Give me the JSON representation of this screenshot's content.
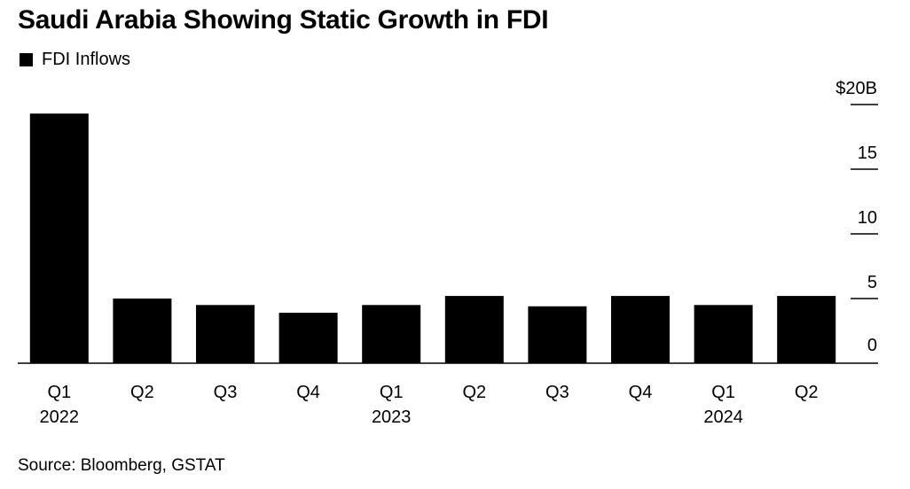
{
  "title": "Saudi Arabia Showing Static Growth in FDI",
  "source": "Source: Bloomberg, GSTAT",
  "colors": {
    "bar": "#000000",
    "axis": "#000000",
    "background": "#ffffff"
  },
  "chart_data": {
    "type": "bar",
    "categories": [
      "Q1",
      "Q2",
      "Q3",
      "Q4",
      "Q1",
      "Q2",
      "Q3",
      "Q4",
      "Q1",
      "Q2"
    ],
    "year_labels": [
      "2022",
      "",
      "",
      "",
      "2023",
      "",
      "",
      "",
      "2024",
      ""
    ],
    "series": [
      {
        "name": "FDI Inflows",
        "values": [
          19.3,
          5.0,
          4.5,
          3.9,
          4.5,
          5.2,
          4.4,
          5.2,
          4.5,
          5.2
        ]
      }
    ],
    "y_ticks": [
      {
        "value": 20,
        "label": "$20B"
      },
      {
        "value": 15,
        "label": "15"
      },
      {
        "value": 10,
        "label": "10"
      },
      {
        "value": 5,
        "label": "5"
      },
      {
        "value": 0,
        "label": "0"
      }
    ],
    "ylim": [
      0,
      20
    ],
    "y_axis_side": "right",
    "grid": false,
    "legend_position": "top-left"
  }
}
